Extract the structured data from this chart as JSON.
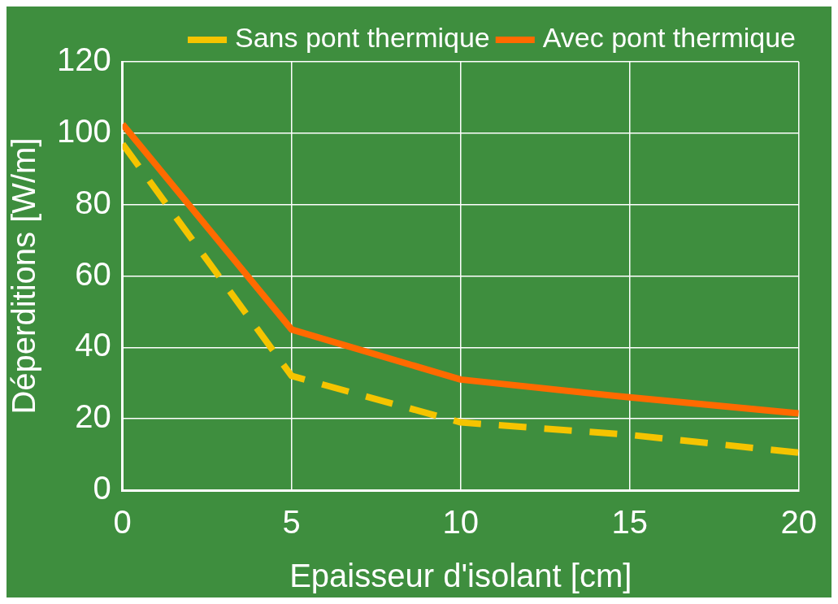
{
  "chart_data": {
    "type": "line",
    "xlabel": "Epaisseur d'isolant [cm]",
    "ylabel": "Déperditions [W/m]",
    "x": [
      0,
      5,
      10,
      15,
      20
    ],
    "series": [
      {
        "name": "Sans pont thermique",
        "color": "#f5c400",
        "values": [
          97,
          32,
          19,
          15.5,
          10.5
        ],
        "line_style": "dashed"
      },
      {
        "name": "Avec pont thermique",
        "color": "#ff6a00",
        "values": [
          102.5,
          45,
          31,
          26,
          21.5
        ],
        "line_style": "solid"
      }
    ],
    "xlim": [
      0,
      20
    ],
    "xticks": [
      0,
      5,
      10,
      15,
      20
    ],
    "ylim": [
      0,
      120
    ],
    "yticks": [
      0,
      20,
      40,
      60,
      80,
      100,
      120
    ],
    "grid": true,
    "legend": "top right",
    "marker": "none"
  }
}
